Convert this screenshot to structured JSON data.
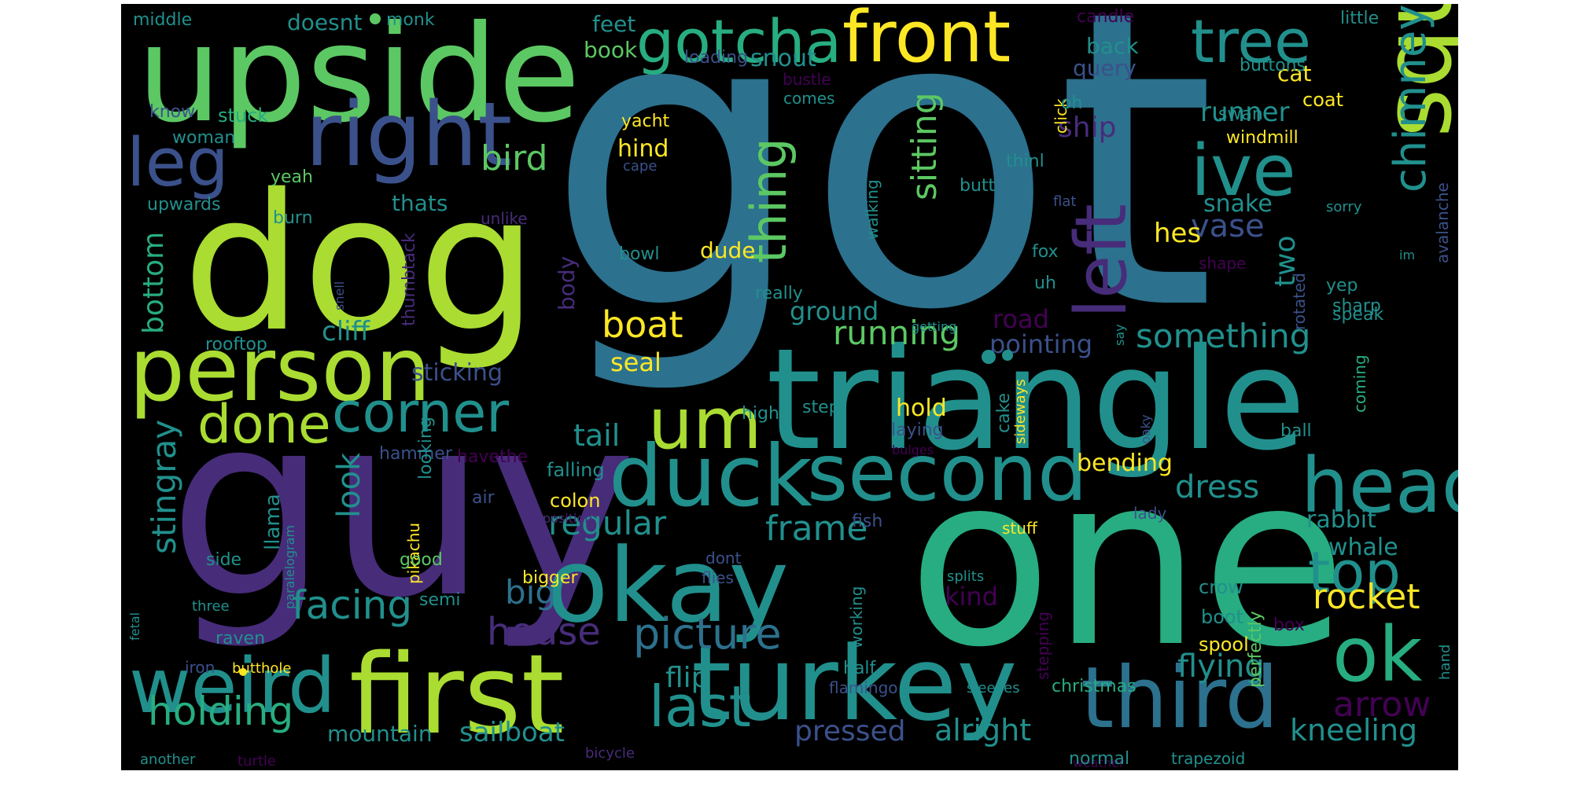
{
  "palette": {
    "background": "#000000",
    "dark_purple": "#440154",
    "purple": "#472c7a",
    "indigo": "#3b518b",
    "blue": "#2c718e",
    "teal": "#21908d",
    "green_teal": "#27ad81",
    "green": "#5cc863",
    "lime": "#aadc32",
    "yellow": "#fde725"
  },
  "words": [
    {
      "text": "got"
    },
    {
      "text": "one"
    },
    {
      "text": "guy"
    },
    {
      "text": "dog"
    },
    {
      "text": "triangle"
    },
    {
      "text": "upside"
    },
    {
      "text": "first"
    },
    {
      "text": "okay"
    },
    {
      "text": "turkey"
    },
    {
      "text": "square"
    },
    {
      "text": "person"
    },
    {
      "text": "right"
    },
    {
      "text": "duck"
    },
    {
      "text": "second"
    },
    {
      "text": "third"
    },
    {
      "text": "weird"
    },
    {
      "text": "head"
    },
    {
      "text": "ok"
    },
    {
      "text": "um"
    },
    {
      "text": "front"
    },
    {
      "text": "gotcha"
    },
    {
      "text": "ive"
    },
    {
      "text": "leg"
    },
    {
      "text": "tree"
    },
    {
      "text": "left"
    },
    {
      "text": "corner"
    },
    {
      "text": "done"
    },
    {
      "text": "last"
    },
    {
      "text": "top"
    },
    {
      "text": "thing"
    },
    {
      "text": "chimney"
    },
    {
      "text": "picture"
    },
    {
      "text": "holding"
    },
    {
      "text": "facing"
    },
    {
      "text": "house"
    },
    {
      "text": "arrow"
    },
    {
      "text": "boat"
    },
    {
      "text": "rocket"
    },
    {
      "text": "frame"
    },
    {
      "text": "sitting"
    },
    {
      "text": "bird"
    },
    {
      "text": "stingray"
    },
    {
      "text": "running"
    },
    {
      "text": "something"
    },
    {
      "text": "regular"
    },
    {
      "text": "big"
    },
    {
      "text": "dress"
    },
    {
      "text": "flying"
    },
    {
      "text": "kneeling"
    },
    {
      "text": "alright"
    },
    {
      "text": "pressed"
    },
    {
      "text": "sailboat"
    },
    {
      "text": "mountain"
    },
    {
      "text": "flip"
    },
    {
      "text": "tail"
    },
    {
      "text": "look"
    },
    {
      "text": "bottom"
    },
    {
      "text": "ship"
    },
    {
      "text": "vase"
    },
    {
      "text": "two"
    },
    {
      "text": "snake"
    },
    {
      "text": "hes"
    },
    {
      "text": "runner"
    },
    {
      "text": "cliff"
    },
    {
      "text": "pointing"
    },
    {
      "text": "ground"
    },
    {
      "text": "road"
    },
    {
      "text": "sticking"
    },
    {
      "text": "bending"
    },
    {
      "text": "rabbit"
    },
    {
      "text": "whale"
    },
    {
      "text": "kind"
    },
    {
      "text": "seal"
    },
    {
      "text": "hold"
    },
    {
      "text": "hind"
    },
    {
      "text": "snout"
    },
    {
      "text": "book"
    },
    {
      "text": "feet"
    },
    {
      "text": "back"
    },
    {
      "text": "query"
    },
    {
      "text": "cat"
    },
    {
      "text": "coat"
    },
    {
      "text": "dude"
    },
    {
      "text": "body"
    },
    {
      "text": "thats"
    },
    {
      "text": "doesnt"
    },
    {
      "text": "middle"
    },
    {
      "text": "monk"
    },
    {
      "text": "candle"
    },
    {
      "text": "little"
    },
    {
      "text": "buttons"
    },
    {
      "text": "loading"
    },
    {
      "text": "bustle"
    },
    {
      "text": "comes"
    },
    {
      "text": "yacht"
    },
    {
      "text": "cape"
    },
    {
      "text": "know"
    },
    {
      "text": "stuck"
    },
    {
      "text": "woman"
    },
    {
      "text": "yeah"
    },
    {
      "text": "upwards"
    },
    {
      "text": "burn"
    },
    {
      "text": "unlike"
    },
    {
      "text": "thumbtack"
    },
    {
      "text": "snell"
    },
    {
      "text": "rooftop"
    },
    {
      "text": "llama"
    },
    {
      "text": "hammer"
    },
    {
      "text": "havethe"
    },
    {
      "text": "looking"
    },
    {
      "text": "falling"
    },
    {
      "text": "air"
    },
    {
      "text": "colon"
    },
    {
      "text": "position"
    },
    {
      "text": "pikachu"
    },
    {
      "text": "paralelogram"
    },
    {
      "text": "side"
    },
    {
      "text": "good"
    },
    {
      "text": "semi"
    },
    {
      "text": "bigger"
    },
    {
      "text": "three"
    },
    {
      "text": "fetal"
    },
    {
      "text": "raven"
    },
    {
      "text": "iron"
    },
    {
      "text": "butthole"
    },
    {
      "text": "another"
    },
    {
      "text": "turtle"
    },
    {
      "text": "bicycle"
    },
    {
      "text": "bowl"
    },
    {
      "text": "really"
    },
    {
      "text": "high"
    },
    {
      "text": "step"
    },
    {
      "text": "laying"
    },
    {
      "text": "cake"
    },
    {
      "text": "sideways"
    },
    {
      "text": "bulges"
    },
    {
      "text": "walking"
    },
    {
      "text": "butt"
    },
    {
      "text": "getting"
    },
    {
      "text": "click"
    },
    {
      "text": "oh"
    },
    {
      "text": "thinl"
    },
    {
      "text": "flat"
    },
    {
      "text": "fox"
    },
    {
      "text": "uh"
    },
    {
      "text": "say"
    },
    {
      "text": "swan"
    },
    {
      "text": "windmill"
    },
    {
      "text": "sorry"
    },
    {
      "text": "avalanche"
    },
    {
      "text": "im"
    },
    {
      "text": "shape"
    },
    {
      "text": "yep"
    },
    {
      "text": "sharp"
    },
    {
      "text": "rotated"
    },
    {
      "text": "speak"
    },
    {
      "text": "coming"
    },
    {
      "text": "ball"
    },
    {
      "text": "oaky"
    },
    {
      "text": "lady"
    },
    {
      "text": "fish"
    },
    {
      "text": "dont"
    },
    {
      "text": "flies"
    },
    {
      "text": "stuff"
    },
    {
      "text": "splits"
    },
    {
      "text": "crow"
    },
    {
      "text": "boot"
    },
    {
      "text": "working"
    },
    {
      "text": "stepping"
    },
    {
      "text": "spool"
    },
    {
      "text": "half"
    },
    {
      "text": "flamingo"
    },
    {
      "text": "sleeves"
    },
    {
      "text": "christmas"
    },
    {
      "text": "perfectly"
    },
    {
      "text": "box"
    },
    {
      "text": "hand"
    },
    {
      "text": "weather"
    },
    {
      "text": "normal"
    },
    {
      "text": "trapezoid"
    }
  ]
}
